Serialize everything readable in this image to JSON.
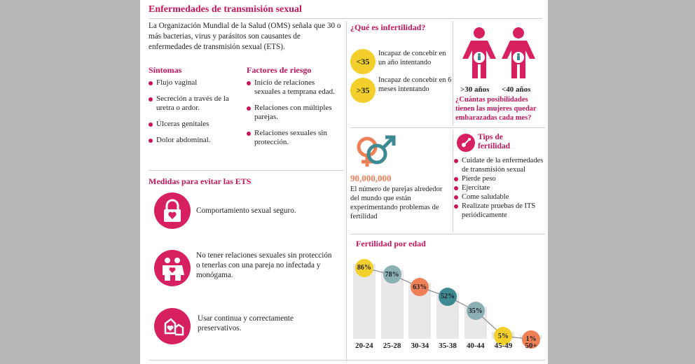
{
  "title": "Enfermedades de transmisión sexual",
  "intro": "La Organización Mundial de la Salud (OMS) señala que 30 o más bacterias, virus y parásitos son causantes de enfermedades de transmisión sexual (ETS).",
  "symptoms": {
    "heading": "Síntomas",
    "items": [
      "Flujo vaginal",
      "Secreción a través de la uretra o ardor.",
      "Úlceras genitales",
      "Dolor abdominal."
    ]
  },
  "risk": {
    "heading": "Factores de riesgo",
    "items": [
      "Inicio de relaciones sexuales a temprana edad.",
      "Relaciones con múltiples parejas.",
      "Relaciones sexuales sin protección."
    ]
  },
  "measures": {
    "heading": "Medidas para evitar las ETS",
    "items": [
      {
        "icon": "padlock-heart-icon",
        "text": "Comportamiento sexual seguro."
      },
      {
        "icon": "couple-icon",
        "text": "No tener relaciones sexuales sin protección o tenerlas con una pareja no infectada y monógama."
      },
      {
        "icon": "shield-heart-icon",
        "text": "Usar continua y correctamente preservativos."
      }
    ]
  },
  "infertility": {
    "heading": "¿Qué es infertilidad?",
    "items": [
      {
        "badge": "<35",
        "text": "Incapaz de concebir en un año intentando"
      },
      {
        "badge": ">35",
        "text": "Incapaz de concebir en 6 meses intentando"
      }
    ]
  },
  "pregnancy": {
    "labels": [
      ">30 años",
      "<40 años"
    ],
    "question": "¿Cuántas posibilidades tienen las mujeres quedar embarazadas cada mes?"
  },
  "couples": {
    "number": "90,000,000",
    "text": "El número de parejas alrededor del mundo que están experimentando problemas de fertilidad"
  },
  "tips": {
    "heading": "Tips de fertilidad",
    "items": [
      "Cuidate de la enfermedades de transmisión sexual",
      "Pierde peso",
      "Ejercítate",
      "Come saludable",
      "Realizate pruebas de ITS periódicamente"
    ]
  },
  "colors": {
    "accent": "#c8145a",
    "yellow": "#f2cf2a",
    "teal": "#3e8a93",
    "orange": "#ee7f57"
  },
  "chart_data": {
    "type": "bar",
    "title": "Fertilidad por edad",
    "categories": [
      "20-24",
      "25-28",
      "30-34",
      "35-38",
      "40-44",
      "45-49",
      "50+"
    ],
    "values": [
      86,
      78,
      63,
      52,
      35,
      5,
      1
    ],
    "labels": [
      "86%",
      "78%",
      "63%",
      "52%",
      "35%",
      "5%",
      "1%"
    ],
    "bubble_colors": [
      "#f2cf2a",
      "#8ab0b3",
      "#ee7f57",
      "#3e8a93",
      "#8ab0b3",
      "#f2cf2a",
      "#ee7f57"
    ],
    "ylim": [
      0,
      100
    ]
  }
}
